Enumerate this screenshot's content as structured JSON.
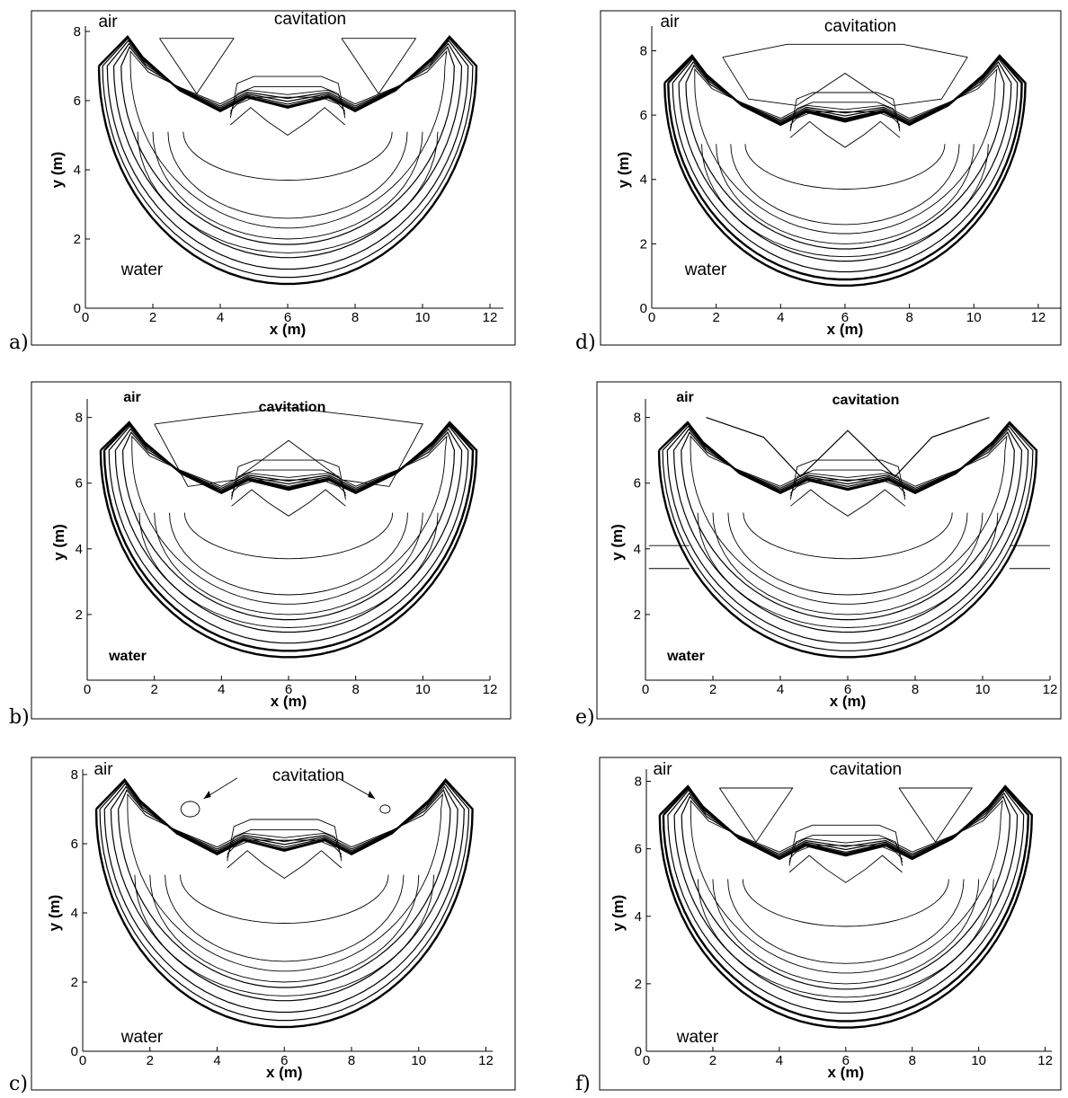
{
  "figure": {
    "panels": [
      {
        "letter": "a)",
        "xlabel": "x (m)",
        "ylabel": "y (m)",
        "xticks": [
          "0",
          "2",
          "4",
          "6",
          "8",
          "10",
          "12"
        ],
        "yticks": [
          "0",
          "2",
          "4",
          "6",
          "8"
        ],
        "labels": {
          "air": "air",
          "cavitation": "cavitation",
          "water": "water"
        },
        "cavitation_style": "wings"
      },
      {
        "letter": "b)",
        "xlabel": "x (m)",
        "ylabel": "y (m)",
        "xticks": [
          "0",
          "2",
          "4",
          "6",
          "8",
          "10",
          "12"
        ],
        "yticks": [
          "2",
          "4",
          "6",
          "8"
        ],
        "labels": {
          "air": "air",
          "cavitation": "cavitation",
          "water": "water"
        },
        "cavitation_style": "wings-bold"
      },
      {
        "letter": "c)",
        "xlabel": "x (m)",
        "ylabel": "y (m)",
        "xticks": [
          "0",
          "2",
          "4",
          "6",
          "8",
          "10",
          "12"
        ],
        "yticks": [
          "0",
          "2",
          "4",
          "6",
          "8"
        ],
        "labels": {
          "air": "air",
          "cavitation": "cavitation",
          "water": "water"
        },
        "cavitation_style": "pockets"
      },
      {
        "letter": "d)",
        "xlabel": "x (m)",
        "ylabel": "y (m)",
        "xticks": [
          "0",
          "2",
          "4",
          "6",
          "8",
          "10",
          "12"
        ],
        "yticks": [
          "0",
          "2",
          "4",
          "6",
          "8"
        ],
        "labels": {
          "air": "air",
          "cavitation": "cavitation",
          "water": "water"
        },
        "cavitation_style": "dome"
      },
      {
        "letter": "e)",
        "xlabel": "x (m)",
        "ylabel": "y (m)",
        "xticks": [
          "0",
          "2",
          "4",
          "6",
          "8",
          "10",
          "12"
        ],
        "yticks": [
          "2",
          "4",
          "6",
          "8"
        ],
        "labels": {
          "air": "air",
          "cavitation": "cavitation",
          "water": "water"
        },
        "cavitation_style": "noisy"
      },
      {
        "letter": "f)",
        "xlabel": "x (m)",
        "ylabel": "y (m)",
        "xticks": [
          "0",
          "2",
          "4",
          "6",
          "8",
          "10",
          "12"
        ],
        "yticks": [
          "0",
          "2",
          "4",
          "6",
          "8"
        ],
        "labels": {
          "air": "air",
          "cavitation": "cavitation",
          "water": "water"
        },
        "cavitation_style": "wings"
      }
    ]
  },
  "chart_data": [
    {
      "type": "contour",
      "xlim": [
        0,
        12
      ],
      "ylim": [
        0,
        8
      ],
      "xlabel": "x (m)",
      "ylabel": "y (m)"
    },
    {
      "type": "contour",
      "xlim": [
        0,
        12
      ],
      "ylim": [
        0,
        8
      ],
      "xlabel": "x (m)",
      "ylabel": "y (m)"
    },
    {
      "type": "contour",
      "xlim": [
        0,
        12
      ],
      "ylim": [
        0,
        8
      ],
      "xlabel": "x (m)",
      "ylabel": "y (m)"
    },
    {
      "type": "contour",
      "xlim": [
        0,
        12
      ],
      "ylim": [
        0,
        8
      ],
      "xlabel": "x (m)",
      "ylabel": "y (m)"
    },
    {
      "type": "contour",
      "xlim": [
        0,
        12
      ],
      "ylim": [
        0,
        8
      ],
      "xlabel": "x (m)",
      "ylabel": "y (m)"
    },
    {
      "type": "contour",
      "xlim": [
        0,
        12
      ],
      "ylim": [
        0,
        8
      ],
      "xlabel": "x (m)",
      "ylabel": "y (m)"
    }
  ]
}
